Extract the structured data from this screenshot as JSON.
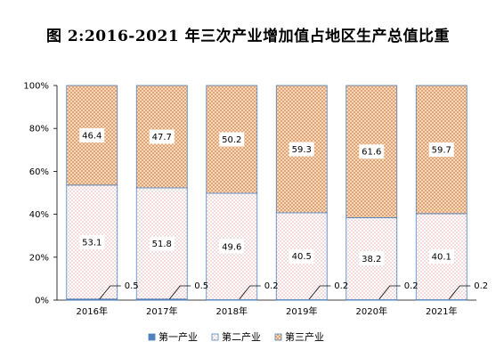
{
  "chart_data": {
    "type": "bar",
    "stacked": true,
    "percent": true,
    "title": "图 2:2016-2021 年三次产业增加值占地区生产总值比重",
    "categories": [
      "2016年",
      "2017年",
      "2018年",
      "2019年",
      "2020年",
      "2021年"
    ],
    "series": [
      {
        "name": "第一产业",
        "values": [
          0.5,
          0.5,
          0.2,
          0.2,
          0.2,
          0.2
        ],
        "color": "#4f81bd"
      },
      {
        "name": "第二产业",
        "values": [
          53.1,
          51.8,
          49.6,
          40.5,
          38.2,
          40.1
        ],
        "color": "#4f81bd"
      },
      {
        "name": "第三产业",
        "values": [
          46.4,
          47.7,
          50.2,
          59.3,
          61.6,
          59.7
        ],
        "color": "#e5a46e"
      }
    ],
    "yticks": [
      "0%",
      "20%",
      "40%",
      "60%",
      "80%",
      "100%"
    ],
    "ylim": [
      0,
      100
    ],
    "grid": false,
    "legend": "bottom"
  }
}
